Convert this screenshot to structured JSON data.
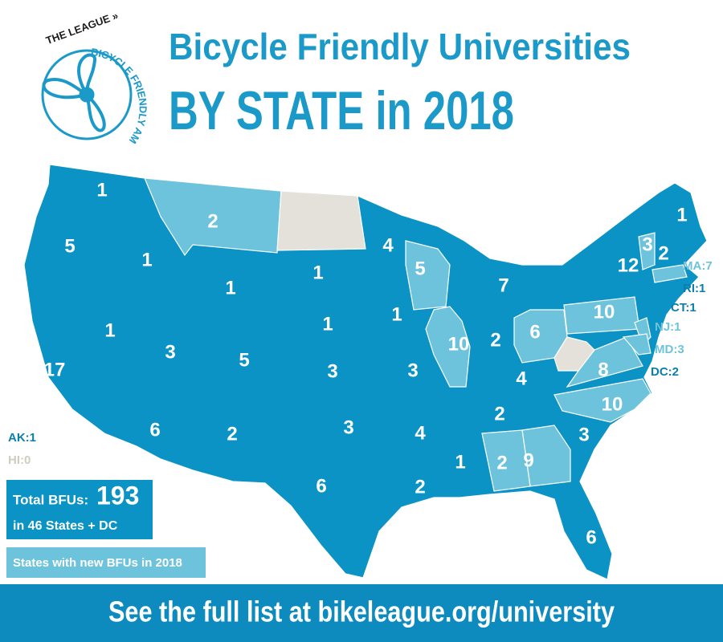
{
  "header": {
    "title_line1": "Bicycle Friendly Universities",
    "title_line2": "BY STATE in 2018",
    "logo_top": "THE LEAGUE »",
    "logo_side": "BICYCLE FRIENDLY AMERICA"
  },
  "colors": {
    "existing": "#0a93c4",
    "new": "#6ec3dc",
    "none": "#e3e1da"
  },
  "states": [
    {
      "count": 1,
      "new": false
    },
    {
      "count": 5,
      "new": false
    },
    {
      "count": 17,
      "new": false
    },
    {
      "count": 1,
      "new": false
    },
    {
      "count": 1,
      "new": false
    },
    {
      "count": 2,
      "new": true
    },
    {
      "count": 1,
      "new": false
    },
    {
      "count": 3,
      "new": false
    },
    {
      "count": 5,
      "new": false
    },
    {
      "count": 6,
      "new": false
    },
    {
      "count": 2,
      "new": false
    },
    {
      "count": 1,
      "new": false
    },
    {
      "count": 1,
      "new": false
    },
    {
      "count": 3,
      "new": false
    },
    {
      "count": 3,
      "new": false
    },
    {
      "count": 6,
      "new": false
    },
    {
      "count": 4,
      "new": false
    },
    {
      "count": 1,
      "new": false
    },
    {
      "count": 3,
      "new": false
    },
    {
      "count": 4,
      "new": false
    },
    {
      "count": 2,
      "new": false
    },
    {
      "count": 5,
      "new": true
    },
    {
      "count": 10,
      "new": true
    },
    {
      "count": 7,
      "new": false
    },
    {
      "count": 2,
      "new": false
    },
    {
      "count": 6,
      "new": true
    },
    {
      "count": 4,
      "new": false
    },
    {
      "count": 2,
      "new": false
    },
    {
      "count": 1,
      "new": false
    },
    {
      "count": 2,
      "new": true
    },
    {
      "count": 9,
      "new": true
    },
    {
      "count": 6,
      "new": false
    },
    {
      "count": 3,
      "new": false
    },
    {
      "count": 10,
      "new": true
    },
    {
      "count": 8,
      "new": true
    },
    {
      "count": 10,
      "new": true
    },
    {
      "count": 12,
      "new": false
    },
    {
      "count": 3,
      "new": true
    },
    {
      "count": 2,
      "new": false
    },
    {
      "count": 1,
      "new": false
    }
  ],
  "callouts": [
    {
      "label": "MA:7",
      "status": "new"
    },
    {
      "label": "RI:1",
      "status": "existing"
    },
    {
      "label": "CT:1",
      "status": "existing"
    },
    {
      "label": "NJ:1",
      "status": "new"
    },
    {
      "label": "MD:3",
      "status": "new"
    },
    {
      "label": "DC:2",
      "status": "existing"
    },
    {
      "label": "AK:1",
      "status": "existing"
    },
    {
      "label": "HI:0",
      "status": "none"
    }
  ],
  "legend": {
    "total_label": "Total BFUs:",
    "total": 193,
    "subtitle": "in 46 States + DC",
    "new_label": "States with new BFUs in 2018"
  },
  "footer": "See the full list at bikeleague.org/university"
}
